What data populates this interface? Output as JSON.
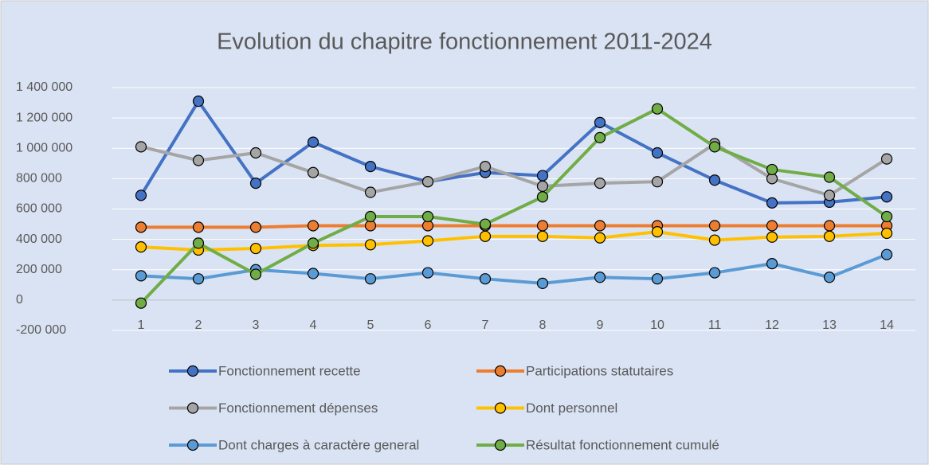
{
  "chart_data": {
    "type": "line",
    "title": "Evolution du chapitre fonctionnement 2011-2024",
    "categories": [
      "1",
      "2",
      "3",
      "4",
      "5",
      "6",
      "7",
      "8",
      "9",
      "10",
      "11",
      "12",
      "13",
      "14"
    ],
    "series": [
      {
        "name": "Fonctionnement recette",
        "color": "#4472c4",
        "values": [
          690000,
          1310000,
          770000,
          1040000,
          880000,
          780000,
          840000,
          820000,
          1170000,
          970000,
          790000,
          640000,
          645000,
          680000
        ]
      },
      {
        "name": "Participations statutaires",
        "color": "#ed7d31",
        "values": [
          480000,
          480000,
          480000,
          490000,
          490000,
          490000,
          490000,
          490000,
          490000,
          490000,
          490000,
          490000,
          490000,
          490000
        ]
      },
      {
        "name": "Fonctionnement dépenses",
        "color": "#a5a5a5",
        "values": [
          1010000,
          920000,
          970000,
          840000,
          710000,
          780000,
          880000,
          750000,
          770000,
          780000,
          1030000,
          800000,
          690000,
          930000
        ]
      },
      {
        "name": "Dont personnel",
        "color": "#ffc000",
        "values": [
          350000,
          330000,
          340000,
          360000,
          365000,
          390000,
          420000,
          420000,
          410000,
          450000,
          395000,
          415000,
          420000,
          440000
        ]
      },
      {
        "name": "Dont charges à caractère general",
        "color": "#5b9bd5",
        "values": [
          160000,
          140000,
          200000,
          175000,
          140000,
          180000,
          140000,
          110000,
          150000,
          140000,
          180000,
          240000,
          150000,
          300000
        ]
      },
      {
        "name": "Résultat fonctionnement cumulé",
        "color": "#70ad47",
        "values": [
          -20000,
          375000,
          170000,
          375000,
          550000,
          550000,
          500000,
          680000,
          1070000,
          1260000,
          1010000,
          860000,
          810000,
          550000
        ]
      }
    ],
    "ylim": [
      -200000,
      1400000
    ],
    "yticks": [
      {
        "value": -200000,
        "label": "-200 000"
      },
      0,
      {
        "value": 200000,
        "label": "200 000"
      },
      {
        "value": 400000,
        "label": "400 000"
      },
      {
        "value": 600000,
        "label": "600 000"
      },
      {
        "value": 800000,
        "label": "800 000"
      },
      {
        "value": 1000000,
        "label": "1 000 000"
      },
      {
        "value": 1200000,
        "label": "1 200 000"
      },
      {
        "value": 1400000,
        "label": "1 400 000"
      }
    ],
    "grid": true,
    "legend": "bottom"
  }
}
